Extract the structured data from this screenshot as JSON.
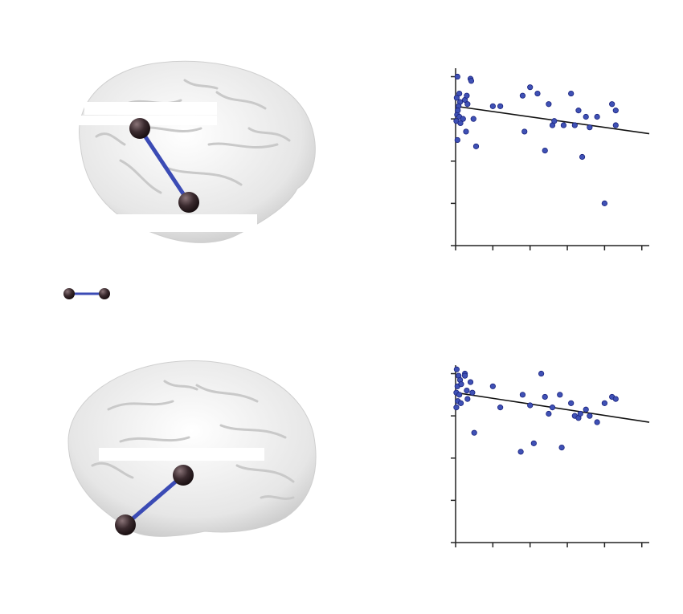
{
  "colors": {
    "point_fill": "#3f51b5",
    "point_stroke": "#1a237e",
    "edge": "#3b4bb5",
    "node": "#3a2a2e",
    "axis": "#222222",
    "fit_line": "#111111",
    "brain": "#ececec"
  },
  "legend": {
    "icon": "node-edge-icon"
  },
  "chart_data": [
    {
      "type": "scatter",
      "title": "",
      "xlabel": "",
      "ylabel": "",
      "xlim": [
        0,
        52
      ],
      "ylim": [
        0,
        4.2
      ],
      "x_ticks": [
        0,
        10,
        20,
        30,
        40,
        50
      ],
      "y_ticks": [
        0,
        1,
        2,
        3,
        4
      ],
      "series": [
        {
          "points": [
            [
              0.5,
              4.0
            ],
            [
              1,
              3.6
            ],
            [
              0.3,
              3.5
            ],
            [
              1.2,
              3.4
            ],
            [
              0.8,
              3.3
            ],
            [
              0.4,
              3.1
            ],
            [
              1,
              3.05
            ],
            [
              0.2,
              2.95
            ],
            [
              1.3,
              2.9
            ],
            [
              0.6,
              3.2
            ],
            [
              2,
              3.0
            ],
            [
              2.5,
              3.45
            ],
            [
              3,
              3.55
            ],
            [
              4,
              3.95
            ],
            [
              4.2,
              3.9
            ],
            [
              3.2,
              3.35
            ],
            [
              2.8,
              2.7
            ],
            [
              4.8,
              3.0
            ],
            [
              5.5,
              2.35
            ],
            [
              0.5,
              2.5
            ],
            [
              10,
              3.3
            ],
            [
              12,
              3.3
            ],
            [
              18,
              3.55
            ],
            [
              20,
              3.75
            ],
            [
              22,
              3.6
            ],
            [
              18.5,
              2.7
            ],
            [
              25,
              3.35
            ],
            [
              26,
              2.85
            ],
            [
              26.5,
              2.95
            ],
            [
              29,
              2.85
            ],
            [
              24,
              2.25
            ],
            [
              31,
              3.6
            ],
            [
              32,
              2.85
            ],
            [
              33,
              3.2
            ],
            [
              34,
              2.1
            ],
            [
              35,
              3.05
            ],
            [
              36,
              2.8
            ],
            [
              38,
              3.05
            ],
            [
              40,
              1.0
            ],
            [
              42,
              3.35
            ],
            [
              43,
              3.2
            ],
            [
              43,
              2.85
            ]
          ]
        }
      ],
      "fit": {
        "x": [
          0,
          52
        ],
        "y": [
          3.3,
          2.65
        ]
      }
    },
    {
      "type": "scatter",
      "title": "",
      "xlabel": "",
      "ylabel": "",
      "xlim": [
        0,
        52
      ],
      "ylim": [
        0,
        4.2
      ],
      "x_ticks": [
        0,
        10,
        20,
        30,
        40,
        50
      ],
      "y_ticks": [
        0,
        1,
        2,
        3,
        4
      ],
      "series": [
        {
          "points": [
            [
              0.3,
              4.1
            ],
            [
              0.8,
              3.95
            ],
            [
              1.2,
              3.85
            ],
            [
              0.5,
              3.7
            ],
            [
              0.2,
              3.55
            ],
            [
              1,
              3.5
            ],
            [
              0.6,
              3.35
            ],
            [
              0.2,
              3.2
            ],
            [
              1.4,
              3.3
            ],
            [
              1.5,
              3.75
            ],
            [
              2.5,
              4.0
            ],
            [
              3,
              3.6
            ],
            [
              3.2,
              3.4
            ],
            [
              4,
              3.8
            ],
            [
              4.5,
              3.55
            ],
            [
              2.5,
              3.95
            ],
            [
              5,
              2.6
            ],
            [
              10,
              3.7
            ],
            [
              12,
              3.2
            ],
            [
              18,
              3.5
            ],
            [
              20,
              3.25
            ],
            [
              17.5,
              2.15
            ],
            [
              21,
              2.35
            ],
            [
              23,
              4.0
            ],
            [
              24,
              3.45
            ],
            [
              25,
              3.05
            ],
            [
              26,
              3.2
            ],
            [
              28,
              3.5
            ],
            [
              28.5,
              2.25
            ],
            [
              31,
              3.3
            ],
            [
              32,
              3.0
            ],
            [
              33,
              2.95
            ],
            [
              33.5,
              3.05
            ],
            [
              35,
              3.15
            ],
            [
              36,
              3.0
            ],
            [
              38,
              2.85
            ],
            [
              40,
              3.3
            ],
            [
              42,
              3.45
            ],
            [
              43,
              3.4
            ]
          ]
        }
      ],
      "fit": {
        "x": [
          0,
          52
        ],
        "y": [
          3.55,
          2.85
        ]
      }
    }
  ]
}
